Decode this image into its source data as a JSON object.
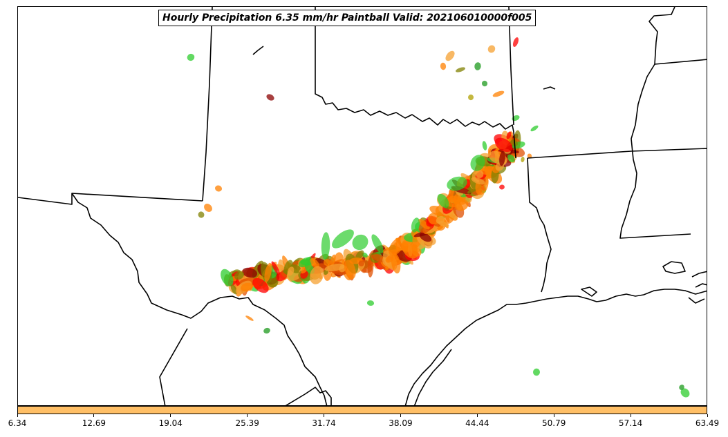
{
  "title": "Hourly Precipitation 6.35 mm/hr Paintball Valid: 202106010000f005",
  "colorbar": {
    "color": "#ffbf66",
    "ticks": [
      "6.34",
      "12.69",
      "19.04",
      "25.39",
      "31.74",
      "38.09",
      "44.44",
      "50.79",
      "57.14",
      "63.49"
    ]
  },
  "paintball_colors": [
    "#ff0000",
    "#ff8000",
    "#f5a030",
    "#2ecc2e",
    "#1e9a1e",
    "#8b0000",
    "#808000",
    "#b0a000"
  ]
}
